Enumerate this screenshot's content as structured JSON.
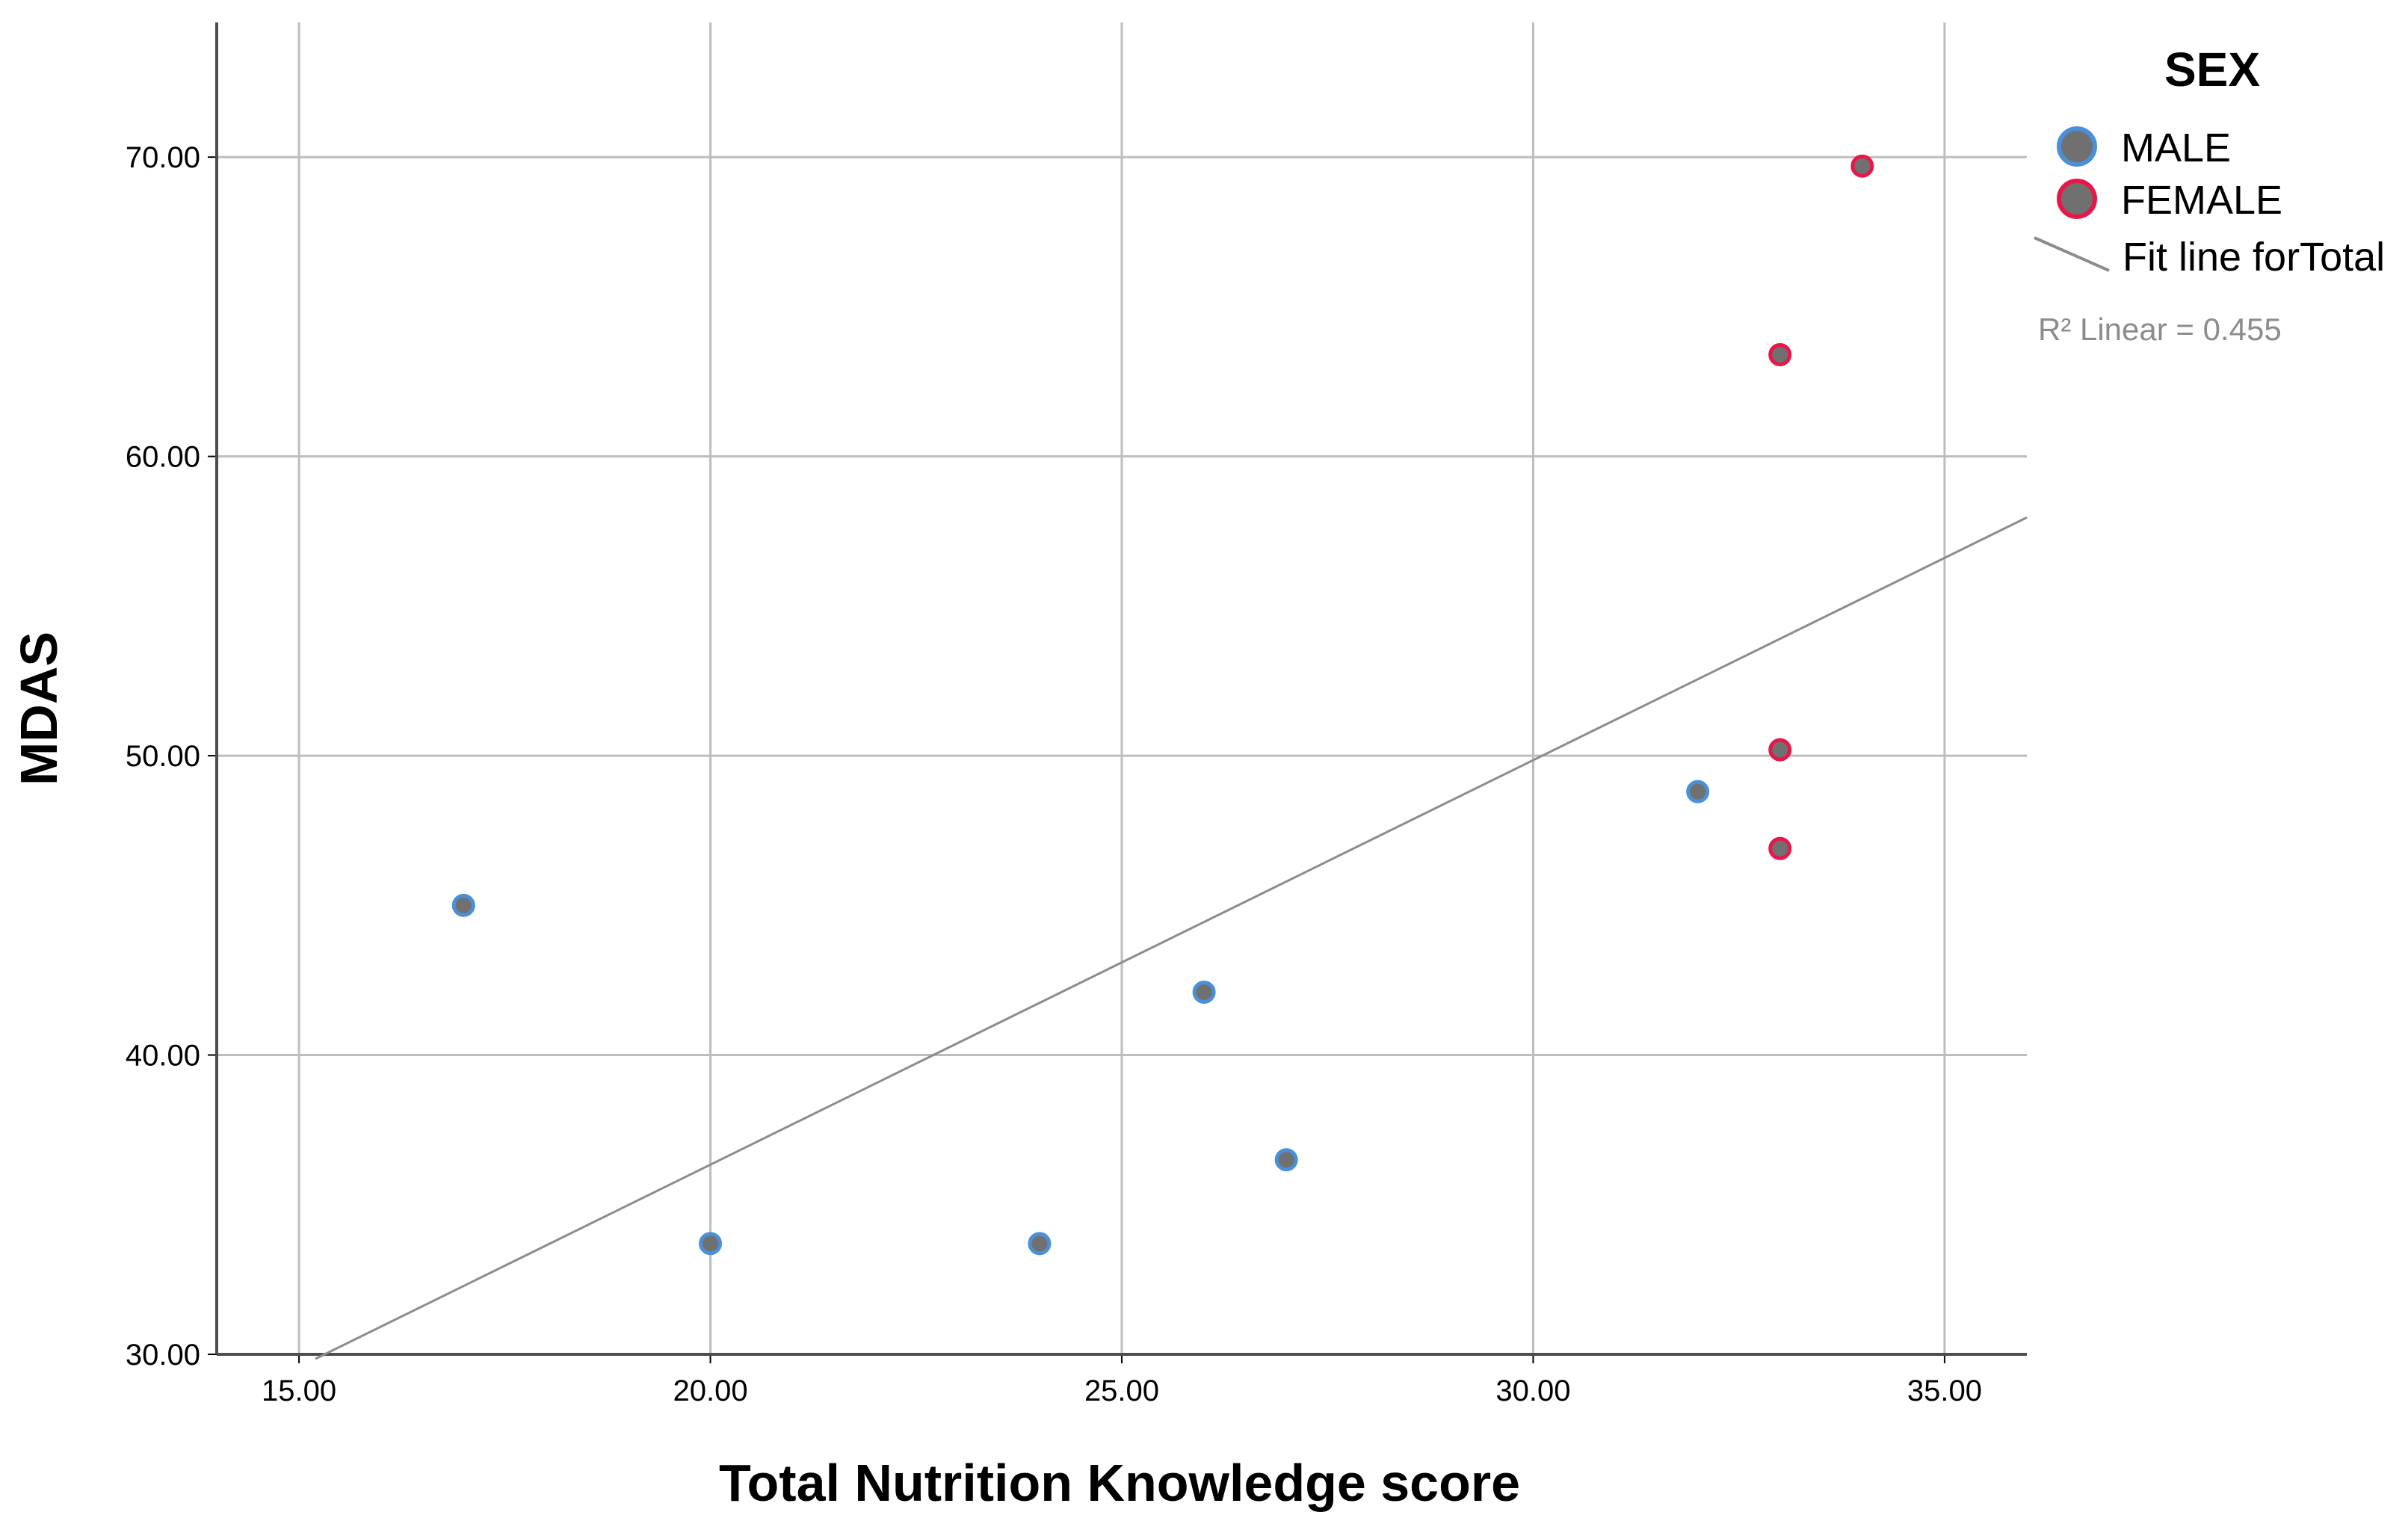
{
  "chart_data": {
    "type": "scatter",
    "xlabel": "Total Nutrition Knowledge score",
    "ylabel": "MDAS",
    "xlim": [
      14.0,
      36.0
    ],
    "ylim": [
      30.0,
      74.5
    ],
    "x_ticks": [
      15,
      20,
      25,
      30,
      35
    ],
    "y_ticks": [
      30,
      40,
      50,
      60,
      70
    ],
    "x_tick_labels": [
      "15.00",
      "20.00",
      "25.00",
      "30.00",
      "35.00"
    ],
    "y_tick_labels": [
      "30.00",
      "40.00",
      "50.00",
      "60.00",
      "70.00"
    ],
    "grid": true,
    "legend": {
      "title": "SEX",
      "position": "right",
      "fit_label": "Fit line forTotal",
      "r2_text": "R² Linear = 0.455"
    },
    "series": [
      {
        "name": "MALE",
        "edge_color": "#4a90d9",
        "fill_color": "#707070",
        "points": [
          {
            "x": 17,
            "y": 45.0
          },
          {
            "x": 20,
            "y": 33.7
          },
          {
            "x": 24,
            "y": 33.7
          },
          {
            "x": 26,
            "y": 42.1
          },
          {
            "x": 27,
            "y": 36.5
          },
          {
            "x": 32,
            "y": 48.8
          }
        ]
      },
      {
        "name": "FEMALE",
        "edge_color": "#e8174a",
        "fill_color": "#707070",
        "points": [
          {
            "x": 33,
            "y": 46.9
          },
          {
            "x": 33,
            "y": 50.2
          },
          {
            "x": 33,
            "y": 63.4
          },
          {
            "x": 34,
            "y": 69.7
          }
        ]
      }
    ],
    "fit_line": {
      "label": "Fit line forTotal",
      "color": "#8c8c8c",
      "x": [
        15.2,
        36.0
      ],
      "y": [
        29.85,
        57.96
      ]
    }
  }
}
